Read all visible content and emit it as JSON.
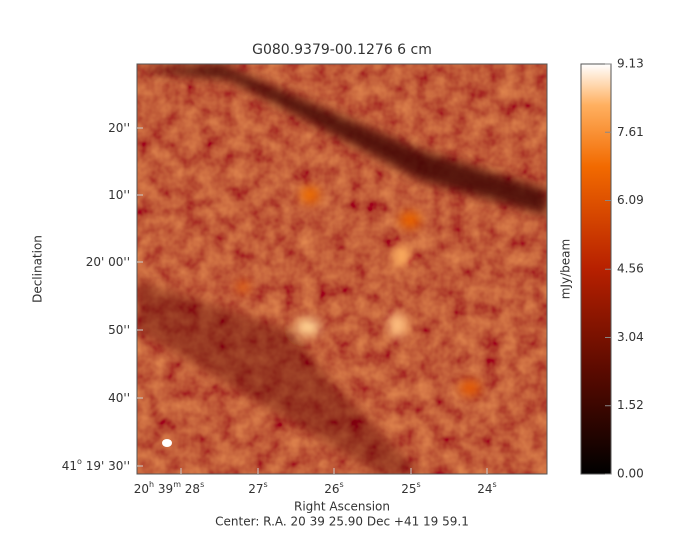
{
  "chart_data": {
    "type": "image",
    "title": "G080.9379-00.1276 6 cm",
    "xlabel": "Right Ascension",
    "ylabel": "Declination",
    "footer": "Center:  R.A. 20 39 25.90     Dec  +41 19 59.1",
    "xticklabels": [
      [
        "20",
        "h",
        " 39",
        "m",
        " 28",
        "s"
      ],
      [
        "27",
        "s"
      ],
      [
        "26",
        "s"
      ],
      [
        "25",
        "s"
      ],
      [
        "24",
        "s"
      ]
    ],
    "yticklabels": [
      [
        "20''"
      ],
      [
        "10''"
      ],
      [
        "20' 00''"
      ],
      [
        "50''"
      ],
      [
        "40''"
      ],
      [
        "41",
        "o",
        " 19' 30''"
      ]
    ],
    "colorbar": {
      "label": "mJy/beam",
      "lim": [
        0,
        9.13
      ],
      "ticks": [
        {
          "value": 0,
          "label": "0.00"
        },
        1.52,
        3.04,
        4.56,
        6.09,
        7.61,
        9.13
      ]
    }
  }
}
